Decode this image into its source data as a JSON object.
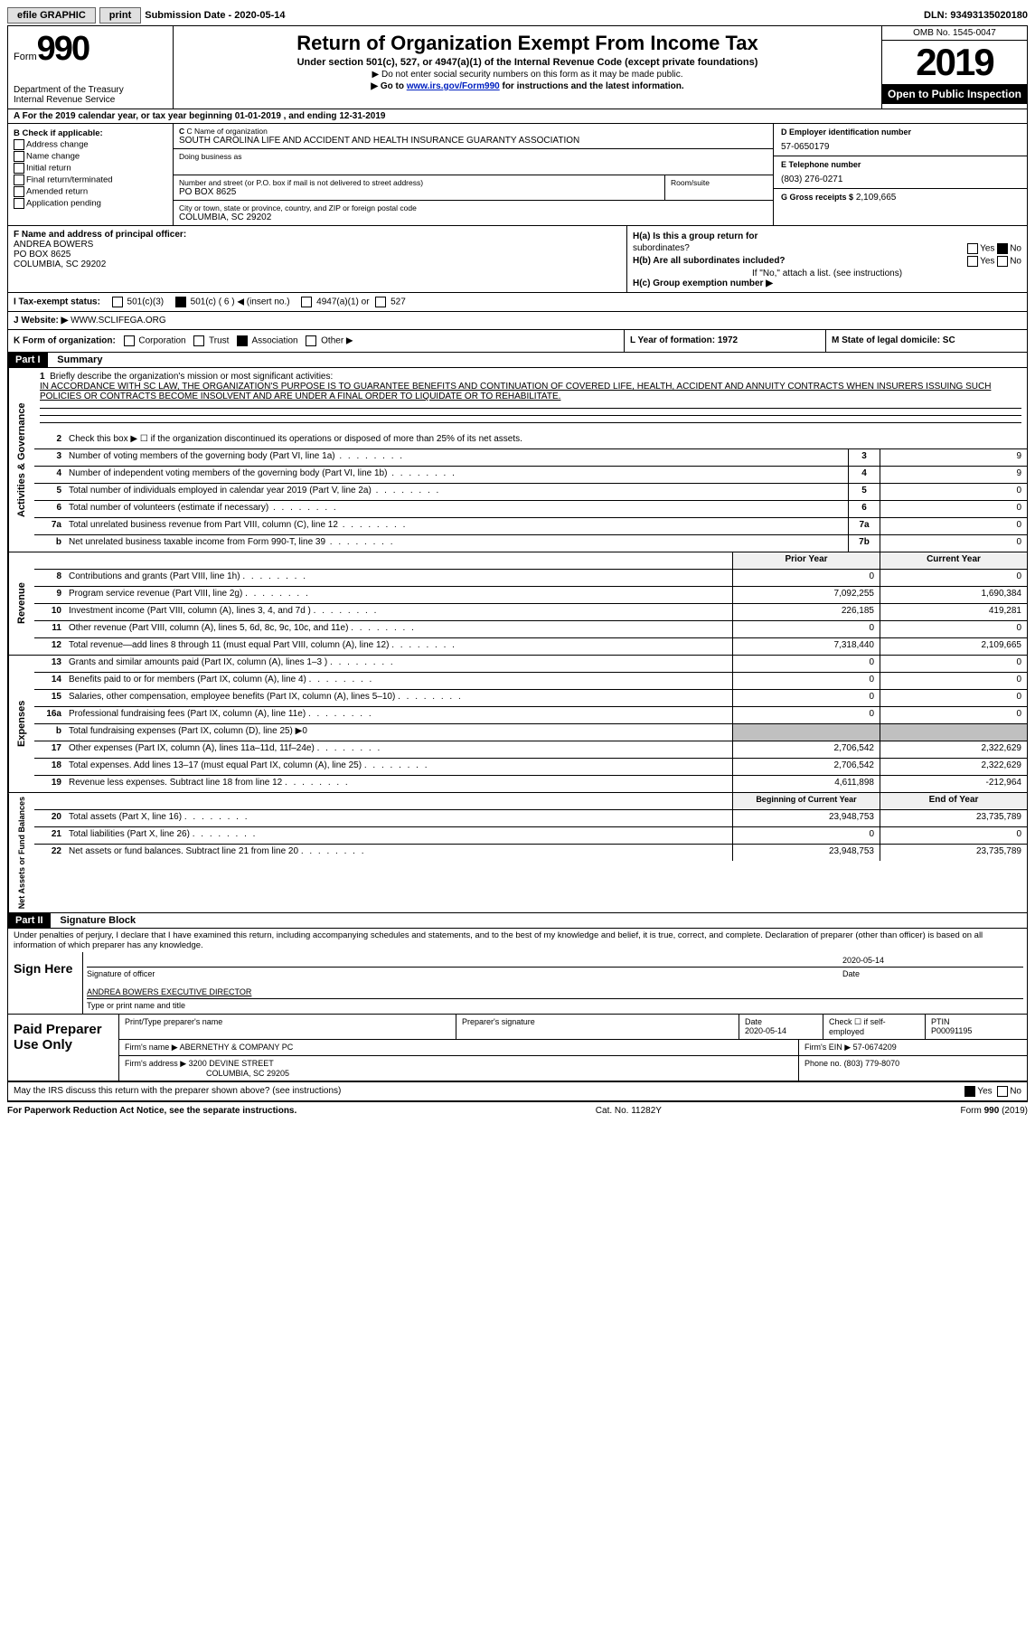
{
  "topbar": {
    "efile": "efile GRAPHIC",
    "print": "print",
    "submission": "Submission Date - 2020-05-14",
    "dln": "DLN: 93493135020180"
  },
  "header": {
    "form_word": "Form",
    "form_num": "990",
    "dept": "Department of the Treasury\nInternal Revenue Service",
    "title": "Return of Organization Exempt From Income Tax",
    "subtitle": "Under section 501(c), 527, or 4947(a)(1) of the Internal Revenue Code (except private foundations)",
    "note1": "▶ Do not enter social security numbers on this form as it may be made public.",
    "note2_pre": "▶ Go to ",
    "note2_link": "www.irs.gov/Form990",
    "note2_post": " for instructions and the latest information.",
    "omb": "OMB No. 1545-0047",
    "year": "2019",
    "inspect": "Open to Public Inspection"
  },
  "lineA": "A For the 2019 calendar year, or tax year beginning 01-01-2019    , and ending 12-31-2019",
  "colB": {
    "hdr": "B Check if applicable:",
    "items": [
      "Address change",
      "Name change",
      "Initial return",
      "Final return/terminated",
      "Amended return",
      "Application pending"
    ]
  },
  "colC": {
    "name_lbl": "C Name of organization",
    "name": "SOUTH CAROLINA LIFE AND ACCIDENT AND HEALTH INSURANCE GUARANTY ASSOCIATION",
    "dba_lbl": "Doing business as",
    "addr_lbl": "Number and street (or P.O. box if mail is not delivered to street address)",
    "room_lbl": "Room/suite",
    "addr": "PO BOX 8625",
    "city_lbl": "City or town, state or province, country, and ZIP or foreign postal code",
    "city": "COLUMBIA, SC  29202"
  },
  "colD": {
    "ein_lbl": "D Employer identification number",
    "ein": "57-0650179",
    "tel_lbl": "E Telephone number",
    "tel": "(803) 276-0271",
    "gross_lbl": "G Gross receipts $",
    "gross": "2,109,665"
  },
  "secF": {
    "lbl": "F  Name and address of principal officer:",
    "name": "ANDREA BOWERS",
    "addr1": "PO BOX 8625",
    "addr2": "COLUMBIA, SC  29202"
  },
  "secH": {
    "a": "H(a)  Is this a group return for",
    "a2": "subordinates?",
    "b": "H(b)  Are all subordinates included?",
    "b2": "If \"No,\" attach a list. (see instructions)",
    "c": "H(c)  Group exemption number ▶"
  },
  "lineI": {
    "lbl": "I    Tax-exempt status:",
    "opts": [
      "501(c)(3)",
      "501(c) ( 6 ) ◀ (insert no.)",
      "4947(a)(1) or",
      "527"
    ]
  },
  "lineJ": {
    "lbl": "J   Website: ▶",
    "val": "WWW.SCLIFEGA.ORG"
  },
  "lineK": {
    "lbl": "K Form of organization:",
    "opts": [
      "Corporation",
      "Trust",
      "Association",
      "Other ▶"
    ]
  },
  "lineL": "L Year of formation: 1972",
  "lineM": "M State of legal domicile: SC",
  "part1": {
    "hdr": "Part I",
    "title": "Summary",
    "line1_lbl": "Briefly describe the organization's mission or most significant activities:",
    "line1_text": "IN ACCORDANCE WITH SC LAW, THE ORGANIZATION'S PURPOSE IS TO GUARANTEE BENEFITS AND CONTINUATION OF COVERED LIFE, HEALTH, ACCIDENT AND ANNUITY CONTRACTS WHEN INSURERS ISSUING SUCH POLICIES OR CONTRACTS BECOME INSOLVENT AND ARE UNDER A FINAL ORDER TO LIQUIDATE OR TO REHABILITATE.",
    "line2": "Check this box ▶ ☐  if the organization discontinued its operations or disposed of more than 25% of its net assets.",
    "rows_ag": [
      {
        "n": "3",
        "d": "Number of voting members of the governing body (Part VI, line 1a)",
        "box": "3",
        "v": "9"
      },
      {
        "n": "4",
        "d": "Number of independent voting members of the governing body (Part VI, line 1b)",
        "box": "4",
        "v": "9"
      },
      {
        "n": "5",
        "d": "Total number of individuals employed in calendar year 2019 (Part V, line 2a)",
        "box": "5",
        "v": "0"
      },
      {
        "n": "6",
        "d": "Total number of volunteers (estimate if necessary)",
        "box": "6",
        "v": "0"
      },
      {
        "n": "7a",
        "d": "Total unrelated business revenue from Part VIII, column (C), line 12",
        "box": "7a",
        "v": "0"
      },
      {
        "n": "b",
        "d": "Net unrelated business taxable income from Form 990-T, line 39",
        "box": "7b",
        "v": "0"
      }
    ],
    "col_hdr_prior": "Prior Year",
    "col_hdr_curr": "Current Year",
    "rows_rev": [
      {
        "n": "8",
        "d": "Contributions and grants (Part VIII, line 1h)",
        "p": "0",
        "c": "0"
      },
      {
        "n": "9",
        "d": "Program service revenue (Part VIII, line 2g)",
        "p": "7,092,255",
        "c": "1,690,384"
      },
      {
        "n": "10",
        "d": "Investment income (Part VIII, column (A), lines 3, 4, and 7d )",
        "p": "226,185",
        "c": "419,281"
      },
      {
        "n": "11",
        "d": "Other revenue (Part VIII, column (A), lines 5, 6d, 8c, 9c, 10c, and 11e)",
        "p": "0",
        "c": "0"
      },
      {
        "n": "12",
        "d": "Total revenue—add lines 8 through 11 (must equal Part VIII, column (A), line 12)",
        "p": "7,318,440",
        "c": "2,109,665"
      }
    ],
    "rows_exp": [
      {
        "n": "13",
        "d": "Grants and similar amounts paid (Part IX, column (A), lines 1–3 )",
        "p": "0",
        "c": "0"
      },
      {
        "n": "14",
        "d": "Benefits paid to or for members (Part IX, column (A), line 4)",
        "p": "0",
        "c": "0"
      },
      {
        "n": "15",
        "d": "Salaries, other compensation, employee benefits (Part IX, column (A), lines 5–10)",
        "p": "0",
        "c": "0"
      },
      {
        "n": "16a",
        "d": "Professional fundraising fees (Part IX, column (A), line 11e)",
        "p": "0",
        "c": "0"
      },
      {
        "n": "b",
        "d": "Total fundraising expenses (Part IX, column (D), line 25) ▶0",
        "p": "",
        "c": "",
        "grey": true
      },
      {
        "n": "17",
        "d": "Other expenses (Part IX, column (A), lines 11a–11d, 11f–24e)",
        "p": "2,706,542",
        "c": "2,322,629"
      },
      {
        "n": "18",
        "d": "Total expenses. Add lines 13–17 (must equal Part IX, column (A), line 25)",
        "p": "2,706,542",
        "c": "2,322,629"
      },
      {
        "n": "19",
        "d": "Revenue less expenses. Subtract line 18 from line 12",
        "p": "4,611,898",
        "c": "-212,964"
      }
    ],
    "col_hdr_begin": "Beginning of Current Year",
    "col_hdr_end": "End of Year",
    "rows_bal": [
      {
        "n": "20",
        "d": "Total assets (Part X, line 16)",
        "p": "23,948,753",
        "c": "23,735,789"
      },
      {
        "n": "21",
        "d": "Total liabilities (Part X, line 26)",
        "p": "0",
        "c": "0"
      },
      {
        "n": "22",
        "d": "Net assets or fund balances. Subtract line 21 from line 20",
        "p": "23,948,753",
        "c": "23,735,789"
      }
    ]
  },
  "vtabs": {
    "ag": "Activities & Governance",
    "rev": "Revenue",
    "exp": "Expenses",
    "bal": "Net Assets or Fund Balances"
  },
  "part2": {
    "hdr": "Part II",
    "title": "Signature Block",
    "text": "Under penalties of perjury, I declare that I have examined this return, including accompanying schedules and statements, and to the best of my knowledge and belief, it is true, correct, and complete. Declaration of preparer (other than officer) is based on all information of which preparer has any knowledge."
  },
  "sign": {
    "here": "Sign Here",
    "sig_lbl": "Signature of officer",
    "date": "2020-05-14",
    "date_lbl": "Date",
    "name": "ANDREA BOWERS EXECUTIVE DIRECTOR",
    "name_lbl": "Type or print name and title"
  },
  "paid": {
    "hdr": "Paid Preparer Use Only",
    "r1": {
      "c1_lbl": "Print/Type preparer's name",
      "c2_lbl": "Preparer's signature",
      "c3_lbl": "Date",
      "c3": "2020-05-14",
      "c4_lbl": "Check ☐ if self-employed",
      "c5_lbl": "PTIN",
      "c5": "P00091195"
    },
    "r2": {
      "lbl": "Firm's name    ▶",
      "val": "ABERNETHY & COMPANY PC",
      "ein_lbl": "Firm's EIN ▶",
      "ein": "57-0674209"
    },
    "r3": {
      "lbl": "Firm's address ▶",
      "val": "3200 DEVINE STREET",
      "city": "COLUMBIA, SC  29205",
      "ph_lbl": "Phone no.",
      "ph": "(803) 779-8070"
    }
  },
  "disclosure": "May the IRS discuss this return with the preparer shown above? (see instructions)",
  "footer": {
    "left": "For Paperwork Reduction Act Notice, see the separate instructions.",
    "mid": "Cat. No. 11282Y",
    "right": "Form 990 (2019)"
  },
  "yes": "Yes",
  "no": "No"
}
